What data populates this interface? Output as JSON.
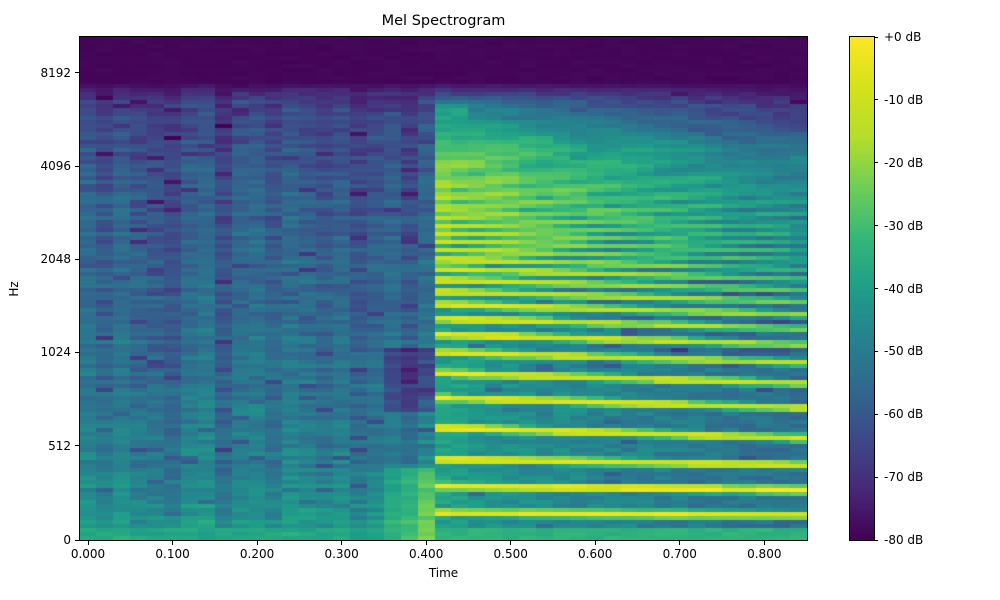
{
  "chart_data": {
    "type": "heatmap",
    "title": "Mel Spectrogram",
    "xlabel": "Time",
    "ylabel": "Hz",
    "xlim": [
      -0.0095,
      0.8505
    ],
    "x_ticks": [
      {
        "v": 0.0,
        "label": "0.000"
      },
      {
        "v": 0.1,
        "label": "0.100"
      },
      {
        "v": 0.2,
        "label": "0.200"
      },
      {
        "v": 0.3,
        "label": "0.300"
      },
      {
        "v": 0.4,
        "label": "0.400"
      },
      {
        "v": 0.5,
        "label": "0.500"
      },
      {
        "v": 0.6,
        "label": "0.600"
      },
      {
        "v": 0.7,
        "label": "0.700"
      },
      {
        "v": 0.8,
        "label": "0.800"
      }
    ],
    "y_ticks": [
      {
        "hz": 0,
        "label": "0"
      },
      {
        "hz": 512,
        "label": "512"
      },
      {
        "hz": 1024,
        "label": "1024"
      },
      {
        "hz": 2048,
        "label": "2048"
      },
      {
        "hz": 4096,
        "label": "4096"
      },
      {
        "hz": 8192,
        "label": "8192"
      }
    ],
    "freq_scale": {
      "type": "mel",
      "fmax_hz": 11025,
      "linear_top_hz": 512,
      "linear_top_frac": 0.1875,
      "octave_frac": 0.1853
    },
    "colorbar": {
      "vmax_db": 0,
      "vmin_db": -80,
      "colormap": "viridis",
      "labels": [
        "+0 dB",
        "-10 dB",
        "-20 dB",
        "-30 dB",
        "-40 dB",
        "-50 dB",
        "-60 dB",
        "-70 dB",
        "-80 dB"
      ]
    },
    "colormap_stops": [
      [
        0.0,
        "#440154"
      ],
      [
        0.1,
        "#482878"
      ],
      [
        0.2,
        "#3e4989"
      ],
      [
        0.3,
        "#31688e"
      ],
      [
        0.4,
        "#26828e"
      ],
      [
        0.5,
        "#1f9e89"
      ],
      [
        0.6,
        "#35b779"
      ],
      [
        0.7,
        "#6ece58"
      ],
      [
        0.8,
        "#b5de2b"
      ],
      [
        0.9,
        "#d5e21a"
      ],
      [
        1.0,
        "#fde725"
      ]
    ],
    "grid": {
      "cols": 43,
      "rows": 126
    },
    "model": {
      "tmax": 0.8505,
      "onset_time_s": 0.335,
      "voiced_start_s": 0.407,
      "silence_above_hz": 7600,
      "fade_from_hz": 6500,
      "onset_max_hz": 380,
      "bottom_green_hz": 70,
      "noise_bands": [
        [
          80,
          -43
        ],
        [
          250,
          -47
        ],
        [
          600,
          -52
        ],
        [
          1500,
          -57
        ],
        [
          3000,
          -60
        ],
        [
          5000,
          -63
        ],
        [
          6500,
          -66
        ]
      ],
      "jitter": {
        "column": 4,
        "streak": 7,
        "cell": 6,
        "speckle_chance": 0.05,
        "speckle_db": -9
      },
      "f0_start_hz": 146,
      "f0_end_hz": 135,
      "harmonic_peaks_db": [
        -4,
        -1,
        -3,
        -2,
        -3.5,
        -2.5,
        -4,
        -3,
        -5,
        -4.5
      ],
      "harmonic_peak_slope": 0.85,
      "harmonic_decay_base": [
        2.5,
        2,
        6,
        7.5
      ],
      "harmonic_decay_rate": 1.7,
      "harmonic_decay_cap": 26,
      "harm_suppress_above_hz": 4600,
      "voiced_bg_low": [
        -42,
        -12
      ],
      "voiced_bg_high_hz": 4500,
      "voiced_bg_high": [
        -50,
        -16
      ],
      "attack_tt": 0.1,
      "attack_db": -40,
      "dark_spots": [
        {
          "t": [
            0.355,
            0.407
          ],
          "hz": [
            650,
            1050
          ],
          "delta_db": -13
        }
      ]
    }
  }
}
